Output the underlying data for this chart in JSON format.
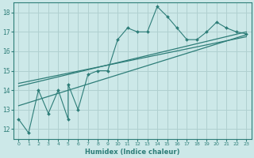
{
  "xlabel": "Humidex (Indice chaleur)",
  "xlim": [
    -0.5,
    23.5
  ],
  "ylim": [
    11.5,
    18.5
  ],
  "xticks": [
    0,
    1,
    2,
    3,
    4,
    5,
    6,
    7,
    8,
    9,
    10,
    11,
    12,
    13,
    14,
    15,
    16,
    17,
    18,
    19,
    20,
    21,
    22,
    23
  ],
  "yticks": [
    12,
    13,
    14,
    15,
    16,
    17,
    18
  ],
  "bg_color": "#cce8e8",
  "line_color": "#2d7d78",
  "grid_color": "#b0d0d0",
  "series1_x": [
    0,
    1,
    2,
    3,
    4,
    5,
    5,
    6,
    7,
    8,
    9,
    10,
    11,
    12,
    13,
    14,
    15,
    16,
    17,
    18,
    19,
    20,
    21,
    22,
    23
  ],
  "series1_y": [
    12.5,
    11.8,
    14.0,
    12.8,
    14.0,
    12.5,
    14.3,
    13.0,
    14.8,
    15.0,
    15.0,
    16.6,
    17.2,
    17.0,
    17.0,
    18.3,
    17.8,
    17.2,
    16.6,
    16.6,
    17.0,
    17.5,
    17.2,
    17.0,
    16.9
  ],
  "trend1_x": [
    0,
    23
  ],
  "trend1_y": [
    14.2,
    17.0
  ],
  "trend2_x": [
    0,
    23
  ],
  "trend2_y": [
    14.35,
    16.75
  ],
  "trend3_x": [
    0,
    23
  ],
  "trend3_y": [
    13.2,
    16.85
  ]
}
